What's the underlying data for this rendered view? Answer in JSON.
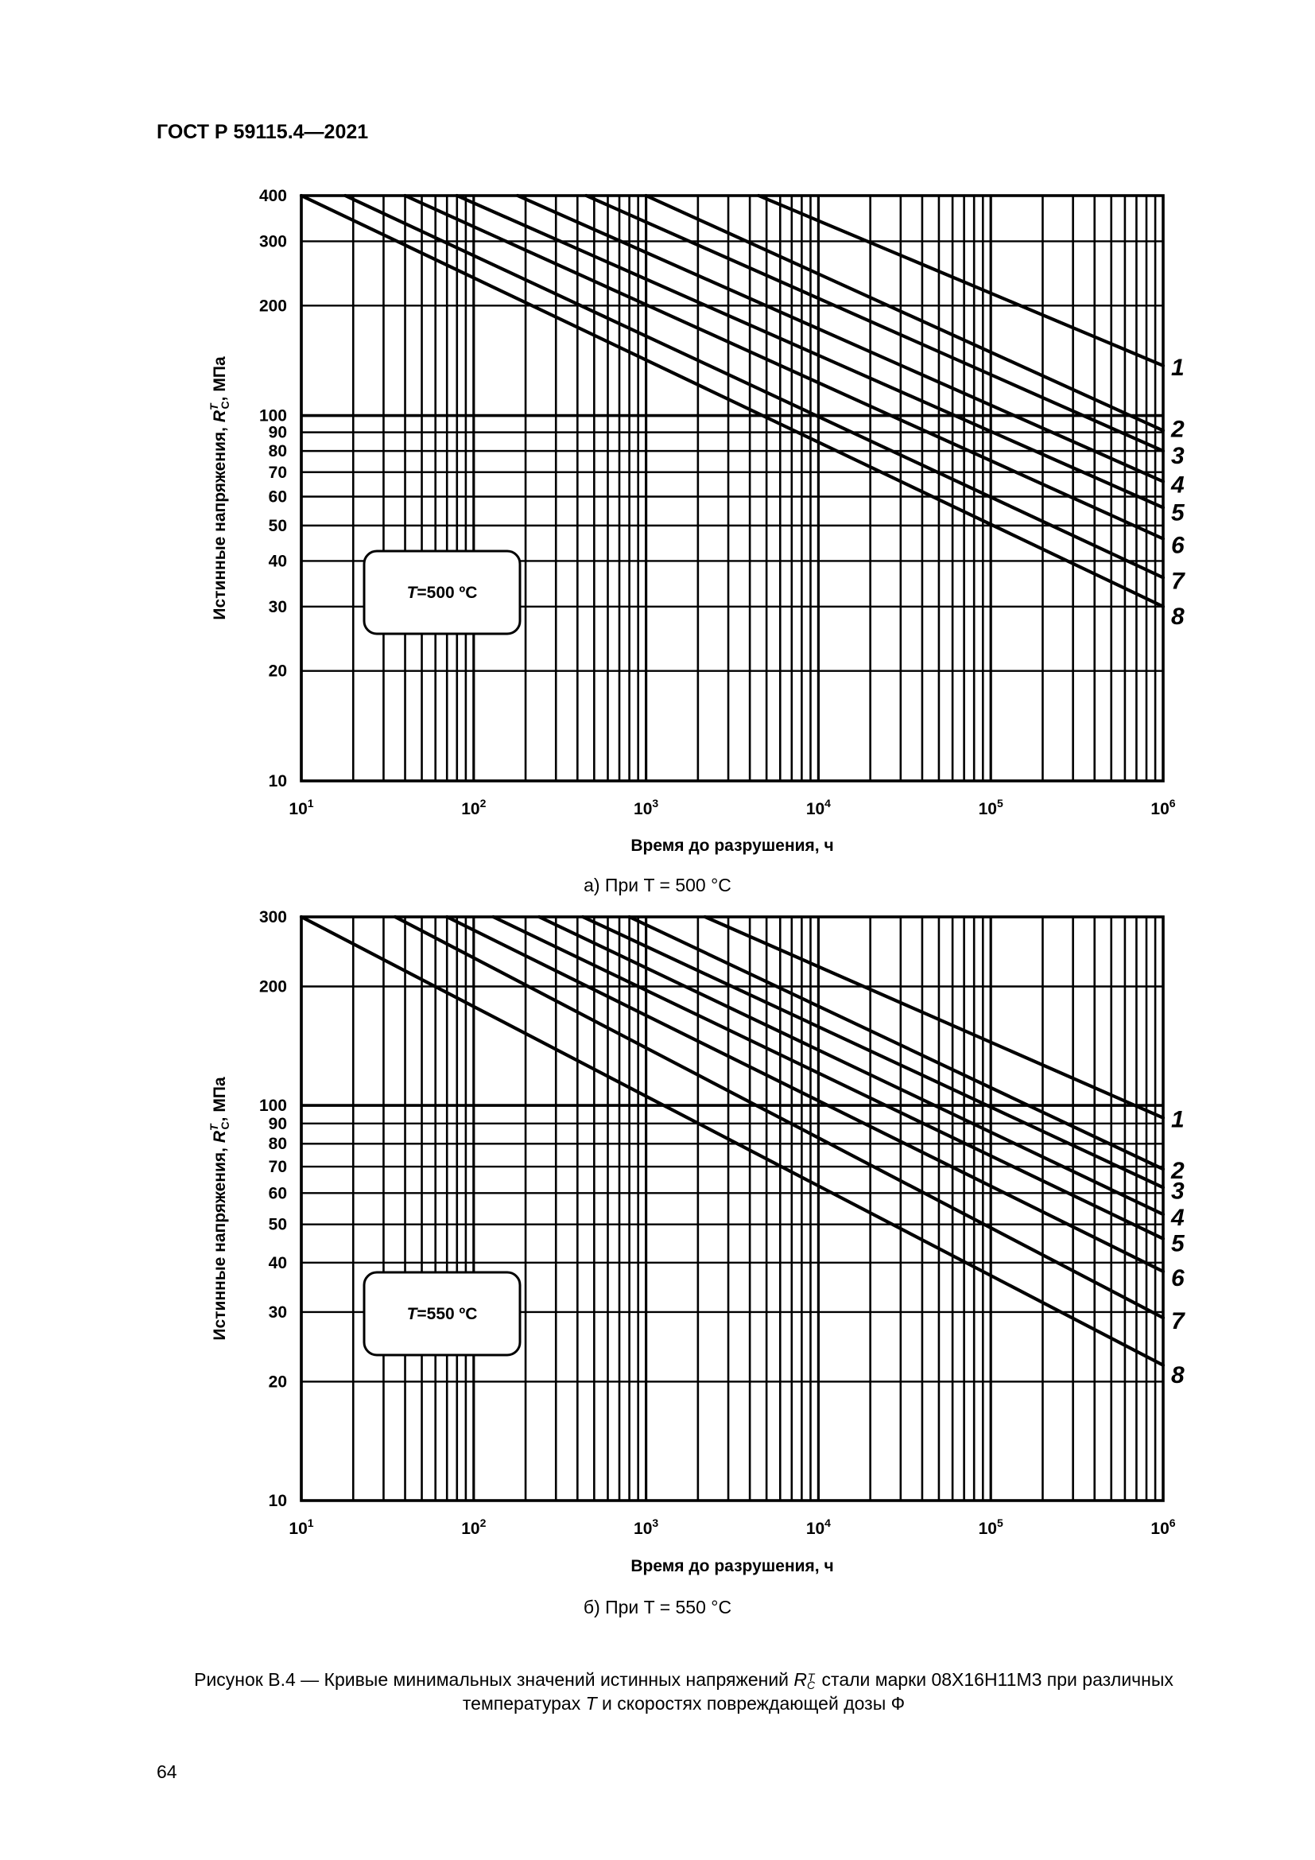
{
  "header": {
    "doc_code": "ГОСТ Р 59115.4—2021"
  },
  "chart_data": [
    {
      "type": "line",
      "panel_caption": "а) При T = 500 °C",
      "temperature_label": "T=500 ºC",
      "xlabel": "Время до разрушения, ч",
      "ylabel": "Истинные напряжения, R_C^T, МПа",
      "x_scale": "log",
      "y_scale": "log",
      "xlim": [
        10,
        1000000
      ],
      "ylim": [
        10,
        400
      ],
      "x_ticks": [
        "10^1",
        "10^2",
        "10^3",
        "10^4",
        "10^5",
        "10^6"
      ],
      "y_ticks": [
        10,
        20,
        30,
        40,
        50,
        60,
        70,
        80,
        90,
        100,
        200,
        300,
        400
      ],
      "series": [
        {
          "name": "1",
          "x": [
            4500,
            1000000
          ],
          "y": [
            400,
            137
          ]
        },
        {
          "name": "2",
          "x": [
            1000,
            1000000
          ],
          "y": [
            400,
            91
          ]
        },
        {
          "name": "3",
          "x": [
            450,
            1000000
          ],
          "y": [
            400,
            80
          ]
        },
        {
          "name": "4",
          "x": [
            180,
            1000000
          ],
          "y": [
            400,
            66
          ]
        },
        {
          "name": "5",
          "x": [
            80,
            1000000
          ],
          "y": [
            400,
            56
          ]
        },
        {
          "name": "6",
          "x": [
            40,
            1000000
          ],
          "y": [
            400,
            46
          ]
        },
        {
          "name": "7",
          "x": [
            18,
            1000000
          ],
          "y": [
            400,
            36
          ]
        },
        {
          "name": "8",
          "x": [
            10,
            1000000
          ],
          "y": [
            400,
            30
          ]
        }
      ]
    },
    {
      "type": "line",
      "panel_caption": "б) При T = 550 °C",
      "temperature_label": "T=550 ºC",
      "xlabel": "Время до разрушения, ч",
      "ylabel": "Истинные напряжения, R_C^T, МПа",
      "x_scale": "log",
      "y_scale": "log",
      "xlim": [
        10,
        1000000
      ],
      "ylim": [
        10,
        300
      ],
      "x_ticks": [
        "10^1",
        "10^2",
        "10^3",
        "10^4",
        "10^5",
        "10^6"
      ],
      "y_ticks": [
        10,
        20,
        30,
        40,
        50,
        60,
        70,
        80,
        90,
        100,
        200,
        300
      ],
      "series": [
        {
          "name": "1",
          "x": [
            2200,
            1000000
          ],
          "y": [
            300,
            93
          ]
        },
        {
          "name": "2",
          "x": [
            800,
            1000000
          ],
          "y": [
            300,
            69
          ]
        },
        {
          "name": "3",
          "x": [
            430,
            1000000
          ],
          "y": [
            300,
            62
          ]
        },
        {
          "name": "4",
          "x": [
            240,
            1000000
          ],
          "y": [
            300,
            53
          ]
        },
        {
          "name": "5",
          "x": [
            130,
            1000000
          ],
          "y": [
            300,
            46
          ]
        },
        {
          "name": "6",
          "x": [
            70,
            1000000
          ],
          "y": [
            300,
            38
          ]
        },
        {
          "name": "7",
          "x": [
            35,
            1000000
          ],
          "y": [
            300,
            29
          ]
        },
        {
          "name": "8",
          "x": [
            10,
            1000000
          ],
          "y": [
            300,
            22
          ]
        }
      ]
    }
  ],
  "caption": {
    "line1": "Рисунок В.4 — Кривые минимальных значений истинных напряжений R_C^T стали марки 08Х16Н11М3 при различных",
    "line2": "температурах T и скоростях повреждающей дозы Ф"
  },
  "page_number": "64"
}
